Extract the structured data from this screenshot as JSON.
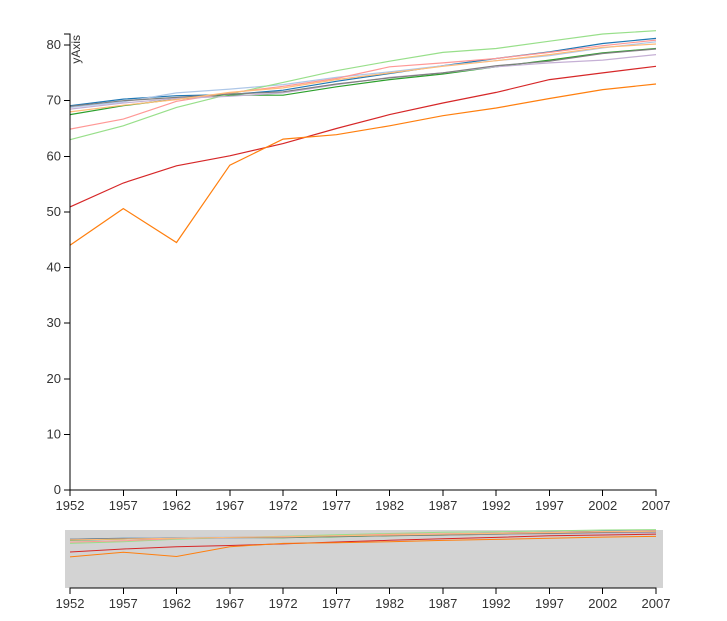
{
  "chart_data": {
    "type": "line",
    "title": "",
    "xlabel": "",
    "ylabel": "yAxis",
    "x": [
      1952,
      1957,
      1962,
      1967,
      1972,
      1977,
      1982,
      1987,
      1992,
      1997,
      2002,
      2007
    ],
    "xlim": [
      1952,
      2007
    ],
    "ylim": [
      0,
      82
    ],
    "yticks": [
      0,
      10,
      20,
      30,
      40,
      50,
      60,
      70,
      80
    ],
    "grid": false,
    "legend": "none",
    "series": [
      {
        "color": "#1f77b4",
        "values": [
          69.1,
          70.3,
          70.9,
          71.1,
          71.9,
          73.5,
          74.9,
          76.3,
          77.6,
          78.8,
          80.3,
          81.2
        ]
      },
      {
        "color": "#aec7e8",
        "values": [
          68.8,
          69.8,
          71.4,
          72.1,
          72.9,
          74.2,
          75.2,
          76.3,
          77.2,
          78.1,
          79.5,
          80.6
        ]
      },
      {
        "color": "#2ca02c",
        "values": [
          67.5,
          69.1,
          70.3,
          71.0,
          71.0,
          72.5,
          73.8,
          74.8,
          76.1,
          77.3,
          78.6,
          79.4
        ]
      },
      {
        "color": "#98df8a",
        "values": [
          63.0,
          65.5,
          68.8,
          71.2,
          73.3,
          75.4,
          77.1,
          78.7,
          79.4,
          80.7,
          82.0,
          82.6
        ]
      },
      {
        "color": "#ff9896",
        "values": [
          64.9,
          66.7,
          69.9,
          71.4,
          72.6,
          74.0,
          76.1,
          76.8,
          77.6,
          78.7,
          79.9,
          80.9
        ]
      },
      {
        "color": "#c5b0d5",
        "values": [
          68.5,
          69.6,
          70.4,
          70.8,
          71.4,
          72.9,
          74.2,
          75.0,
          76.1,
          76.8,
          77.3,
          78.3
        ]
      },
      {
        "color": "#7f7f7f",
        "values": [
          69.0,
          70.0,
          70.6,
          71.2,
          71.6,
          73.0,
          74.1,
          75.0,
          76.3,
          77.1,
          78.5,
          79.3
        ]
      },
      {
        "color": "#ffbb78",
        "values": [
          68.0,
          69.2,
          70.2,
          71.5,
          72.3,
          73.8,
          75.0,
          76.2,
          77.2,
          78.3,
          79.6,
          80.2
        ]
      },
      {
        "color": "#d62728",
        "values": [
          50.9,
          55.2,
          58.3,
          60.1,
          62.3,
          65.0,
          67.5,
          69.6,
          71.5,
          73.8,
          75.0,
          76.2
        ]
      },
      {
        "color": "#ff7f0e",
        "values": [
          44.0,
          50.6,
          44.5,
          58.4,
          63.1,
          63.9,
          65.5,
          67.3,
          68.7,
          70.4,
          72.0,
          73.0
        ]
      }
    ]
  }
}
